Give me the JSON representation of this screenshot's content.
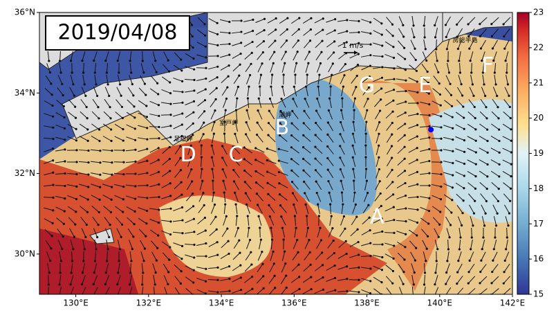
{
  "map": {
    "date": "2019/04/08",
    "xlim": [
      129,
      142
    ],
    "ylim": [
      29,
      36
    ],
    "xticks": [
      {
        "value": 130,
        "label": "130°E"
      },
      {
        "value": 132,
        "label": "132°E"
      },
      {
        "value": 134,
        "label": "134°E"
      },
      {
        "value": 136,
        "label": "136°E"
      },
      {
        "value": 138,
        "label": "138°E"
      },
      {
        "value": 140,
        "label": "140°E"
      },
      {
        "value": 142,
        "label": "142°E"
      }
    ],
    "yticks": [
      {
        "value": 30,
        "label": "30°N"
      },
      {
        "value": 32,
        "label": "32°N"
      },
      {
        "value": 34,
        "label": "34°N"
      },
      {
        "value": 36,
        "label": "36°N"
      }
    ],
    "colorbar": {
      "lim": [
        15,
        23
      ],
      "ticks": [
        15,
        16,
        17,
        18,
        19,
        20,
        21,
        22,
        23
      ]
    },
    "scale_label": "1 m/s",
    "letters": [
      {
        "text": "A",
        "lon": 138.28,
        "lat": 30.91
      },
      {
        "text": "B",
        "lon": 135.67,
        "lat": 33.12
      },
      {
        "text": "C",
        "lon": 134.4,
        "lat": 32.45
      },
      {
        "text": "D",
        "lon": 133.09,
        "lat": 32.45
      },
      {
        "text": "E",
        "lon": 139.6,
        "lat": 34.17
      },
      {
        "text": "F",
        "lon": 141.32,
        "lat": 34.67
      },
      {
        "text": "G",
        "lon": 138.0,
        "lat": 34.17
      }
    ],
    "places": [
      {
        "text": "室戸岬",
        "lon": 134.2,
        "lat": 33.25
      },
      {
        "text": "足摺岬",
        "lon": 132.95,
        "lat": 32.85
      },
      {
        "text": "潮岬",
        "lon": 135.75,
        "lat": 33.45
      },
      {
        "text": "房総半島",
        "lon": 140.7,
        "lat": 35.3
      }
    ],
    "point": {
      "lon": 139.76,
      "lat": 33.09
    }
  }
}
